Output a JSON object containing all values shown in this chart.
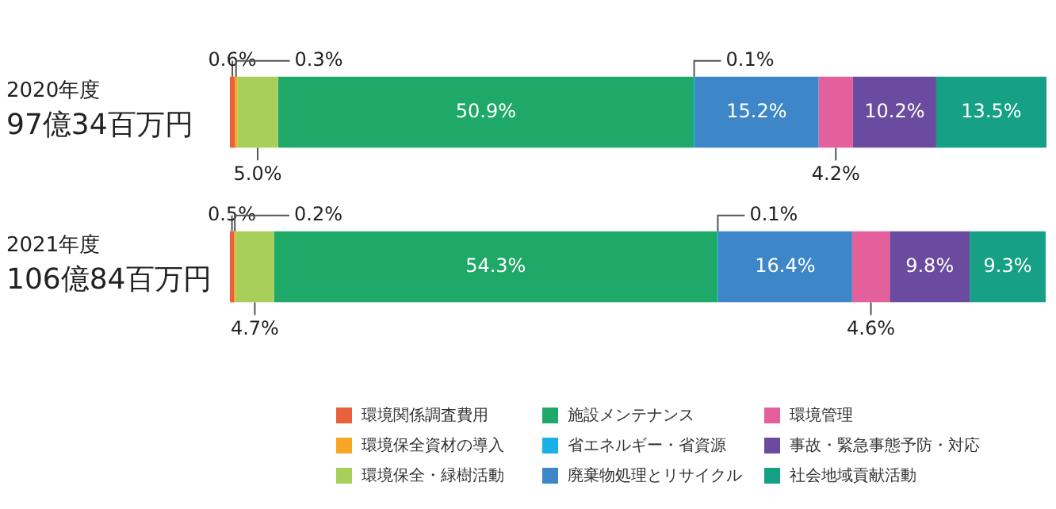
{
  "chart_data": {
    "type": "bar",
    "orientation": "horizontal",
    "stacked": true,
    "legend": "bottom",
    "tick_labels": false,
    "categories": [
      "2020年度\n97億34百万円",
      "2021年度\n106億84百万円"
    ],
    "series": [
      {
        "name": "環境関係調査費用",
        "color": "#e8603c",
        "values": [
          0.6,
          0.5
        ],
        "value_labels": [
          "0.6%",
          "0.5%"
        ]
      },
      {
        "name": "環境保全資材の導入",
        "color": "#f5a623",
        "values": [
          0.3,
          0.2
        ],
        "value_labels": [
          "0.3%",
          "0.2%"
        ]
      },
      {
        "name": "環境保全・緑樹活動",
        "color": "#a8cf5a",
        "values": [
          5.0,
          4.7
        ],
        "value_labels": [
          "5.0%",
          "4.7%"
        ]
      },
      {
        "name": "施設メンテナンス",
        "color": "#1fa968",
        "values": [
          50.9,
          54.3
        ],
        "value_labels": [
          "50.9%",
          "54.3%"
        ]
      },
      {
        "name": "省エネルギー・省資源",
        "color": "#1ab0e6",
        "values": [
          0.1,
          0.1
        ],
        "value_labels": [
          "0.1%",
          "0.1%"
        ]
      },
      {
        "name": "廃棄物処理とリサイクル",
        "color": "#3d86c8",
        "values": [
          15.2,
          16.4
        ],
        "value_labels": [
          "15.2%",
          "16.4%"
        ]
      },
      {
        "name": "環境管理",
        "color": "#e4609c",
        "values": [
          4.2,
          4.6
        ],
        "value_labels": [
          "4.2%",
          "4.6%"
        ]
      },
      {
        "name": "事故・緊急事態予防・対応",
        "color": "#6b4ba0",
        "values": [
          10.2,
          9.8
        ],
        "value_labels": [
          "10.2%",
          "9.8%"
        ]
      },
      {
        "name": "社会地域貢献活動",
        "color": "#16a085",
        "values": [
          13.5,
          9.3
        ],
        "value_labels": [
          "13.5%",
          "9.3%"
        ]
      }
    ]
  }
}
